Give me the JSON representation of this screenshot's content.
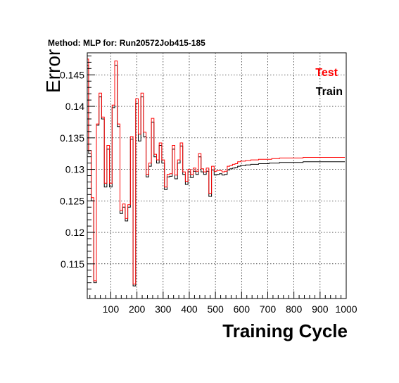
{
  "chart_data": {
    "type": "line",
    "title": "Method: MLP for: Run20572Job415-185",
    "xlabel": "Training Cycle",
    "ylabel": "Error",
    "xlim": [
      10,
      1000
    ],
    "ylim": [
      0.1095,
      0.1485
    ],
    "x_ticks": [
      100,
      200,
      300,
      400,
      500,
      600,
      700,
      800,
      900,
      1000
    ],
    "y_ticks": [
      0.115,
      0.12,
      0.125,
      0.13,
      0.135,
      0.14,
      0.145
    ],
    "grid": true,
    "legend_position": "top-right",
    "step_width": 10,
    "series": [
      {
        "name": "Test",
        "color": "#ff0000",
        "x": [
          10,
          20,
          30,
          40,
          50,
          60,
          70,
          80,
          90,
          100,
          110,
          120,
          130,
          140,
          150,
          160,
          170,
          180,
          190,
          200,
          210,
          220,
          230,
          240,
          250,
          260,
          270,
          280,
          290,
          300,
          310,
          320,
          330,
          340,
          350,
          360,
          370,
          380,
          390,
          400,
          410,
          420,
          430,
          440,
          450,
          460,
          470,
          480,
          490,
          500,
          510,
          520,
          530,
          540,
          550,
          560,
          570,
          580,
          590,
          600,
          610,
          620,
          630,
          640,
          650,
          660,
          670,
          680,
          690,
          700,
          710,
          720,
          730,
          740,
          750,
          760,
          770,
          780,
          790,
          800,
          810,
          820,
          830,
          840,
          850,
          860,
          870,
          880,
          890,
          900,
          910,
          920,
          930,
          940,
          950,
          960,
          970,
          980,
          990
        ],
        "y": [
          0.1475,
          0.133,
          0.1255,
          0.1123,
          0.1372,
          0.1421,
          0.1383,
          0.1278,
          0.1338,
          0.1278,
          0.1402,
          0.1472,
          0.1372,
          0.1235,
          0.1245,
          0.1222,
          0.1244,
          0.1352,
          0.1118,
          0.1412,
          0.1356,
          0.1421,
          0.1359,
          0.1292,
          0.131,
          0.1381,
          0.1324,
          0.1315,
          0.1342,
          0.1315,
          0.1272,
          0.1292,
          0.1293,
          0.1338,
          0.1291,
          0.1315,
          0.1342,
          0.1296,
          0.1281,
          0.13,
          0.1292,
          0.1302,
          0.1297,
          0.1325,
          0.1301,
          0.1296,
          0.1302,
          0.1262,
          0.1305,
          0.1297,
          0.1298,
          0.1298,
          0.1296,
          0.1297,
          0.1305,
          0.1306,
          0.1308,
          0.1309,
          0.1312,
          0.1313,
          0.1313,
          0.1314,
          0.1314,
          0.1315,
          0.1315,
          0.1315,
          0.1316,
          0.1316,
          0.1316,
          0.1316,
          0.1316,
          0.1317,
          0.1317,
          0.1317,
          0.1318,
          0.1318,
          0.1318,
          0.1318,
          0.1318,
          0.1318,
          0.1318,
          0.1318,
          0.1318,
          0.1319,
          0.1319,
          0.1319,
          0.1319,
          0.1319,
          0.1319,
          0.1319,
          0.1319,
          0.1319,
          0.1319,
          0.1319,
          0.1319,
          0.1319,
          0.1319,
          0.1319,
          0.1319
        ]
      },
      {
        "name": "Train",
        "color": "#000000",
        "x": [
          10,
          20,
          30,
          40,
          50,
          60,
          70,
          80,
          90,
          100,
          110,
          120,
          130,
          140,
          150,
          160,
          170,
          180,
          190,
          200,
          210,
          220,
          230,
          240,
          250,
          260,
          270,
          280,
          290,
          300,
          310,
          320,
          330,
          340,
          350,
          360,
          370,
          380,
          390,
          400,
          410,
          420,
          430,
          440,
          450,
          460,
          470,
          480,
          490,
          500,
          510,
          520,
          530,
          540,
          550,
          560,
          570,
          580,
          590,
          600,
          610,
          620,
          630,
          640,
          650,
          660,
          670,
          680,
          690,
          700,
          710,
          720,
          730,
          740,
          750,
          760,
          770,
          780,
          790,
          800,
          810,
          820,
          830,
          840,
          850,
          860,
          870,
          880,
          890,
          900,
          910,
          920,
          930,
          940,
          950,
          960,
          970,
          980,
          990
        ],
        "y": [
          0.1465,
          0.1325,
          0.125,
          0.112,
          0.137,
          0.1415,
          0.138,
          0.1272,
          0.1332,
          0.1272,
          0.1398,
          0.1465,
          0.1368,
          0.123,
          0.124,
          0.1218,
          0.124,
          0.1348,
          0.1115,
          0.1405,
          0.1345,
          0.1415,
          0.1352,
          0.1288,
          0.1305,
          0.1375,
          0.132,
          0.131,
          0.1338,
          0.131,
          0.1268,
          0.1288,
          0.1289,
          0.1332,
          0.1285,
          0.131,
          0.1337,
          0.1292,
          0.1276,
          0.1296,
          0.1287,
          0.1297,
          0.1292,
          0.132,
          0.1296,
          0.1292,
          0.1297,
          0.1257,
          0.1299,
          0.1291,
          0.1292,
          0.1293,
          0.1291,
          0.1292,
          0.1299,
          0.1301,
          0.1302,
          0.1303,
          0.1305,
          0.1306,
          0.1306,
          0.1307,
          0.1307,
          0.1308,
          0.1308,
          0.1308,
          0.1309,
          0.1309,
          0.1309,
          0.1309,
          0.131,
          0.131,
          0.131,
          0.131,
          0.1311,
          0.1311,
          0.1311,
          0.1311,
          0.1311,
          0.1311,
          0.1311,
          0.1311,
          0.1311,
          0.1312,
          0.1312,
          0.1312,
          0.1312,
          0.1312,
          0.1312,
          0.1312,
          0.1312,
          0.1312,
          0.1312,
          0.1312,
          0.1312,
          0.1312,
          0.1312,
          0.1312,
          0.1312
        ]
      }
    ]
  }
}
